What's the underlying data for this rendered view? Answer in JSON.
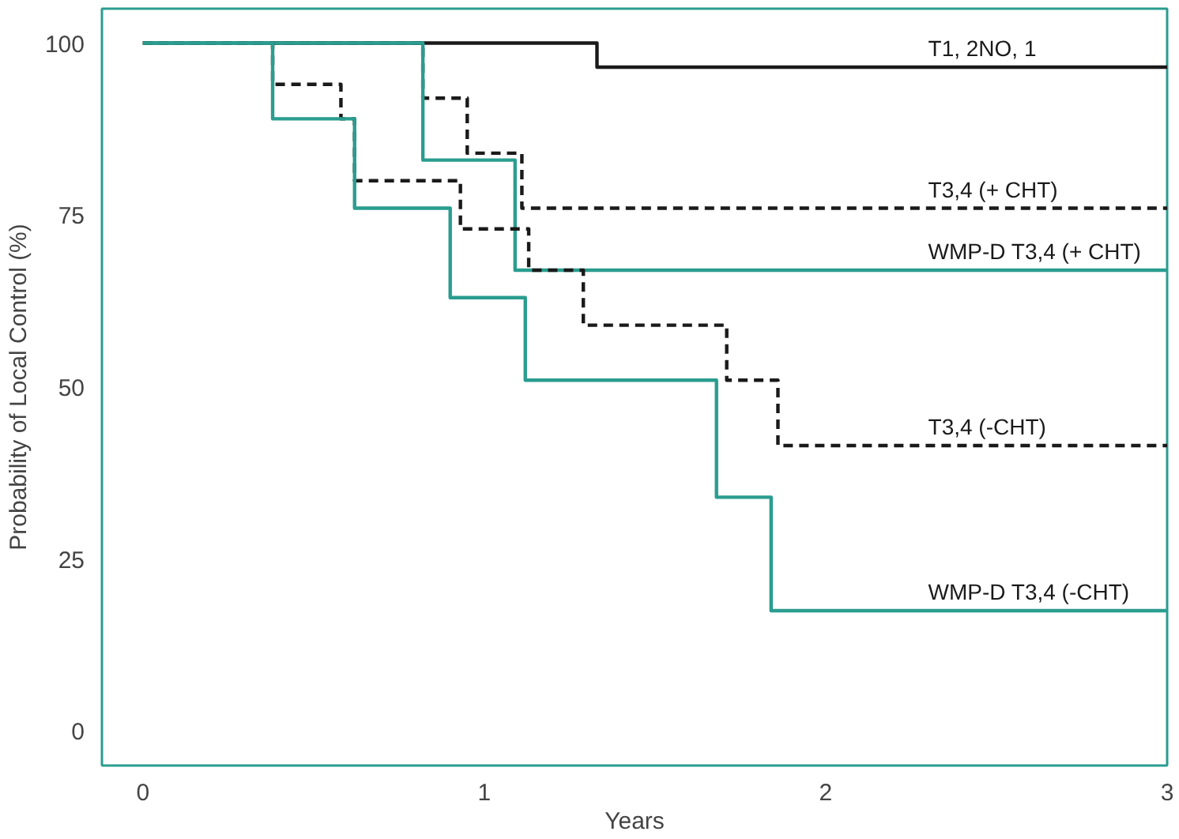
{
  "chart_data": {
    "type": "step",
    "xlabel": "Years",
    "ylabel": "Probability of Local Control (%)",
    "xlim": [
      -0.12,
      3
    ],
    "ylim": [
      -5,
      105
    ],
    "xticks": [
      0,
      1,
      2,
      3
    ],
    "yticks": [
      0,
      25,
      50,
      75,
      100
    ],
    "grid": false,
    "legend": false,
    "series": [
      {
        "name": "T1, 2NO, 1",
        "color": "#1a1a1a",
        "line_style": "solid",
        "x": [
          0,
          1.33,
          3
        ],
        "values": [
          100,
          96.5,
          96.5
        ]
      },
      {
        "name": "T3,4 (+ CHT)",
        "color": "#1a1a1a",
        "line_style": "dashed",
        "x": [
          0,
          0.82,
          0.95,
          1.11,
          3
        ],
        "values": [
          100,
          92,
          84,
          76,
          76
        ]
      },
      {
        "name": "WMP-D T3,4 (+ CHT)",
        "color": "#2a9d8f",
        "line_style": "solid",
        "x": [
          0,
          0.82,
          1.09,
          3
        ],
        "values": [
          100,
          83,
          67,
          67
        ]
      },
      {
        "name": "T3,4 (-CHT)",
        "color": "#1a1a1a",
        "line_style": "dashed",
        "x": [
          0,
          0.38,
          0.58,
          0.62,
          0.93,
          1.13,
          1.29,
          1.71,
          1.86,
          3
        ],
        "values": [
          100,
          94,
          89,
          80,
          73,
          67,
          59,
          51,
          41.5,
          41.5
        ]
      },
      {
        "name": "WMP-D T3,4 (-CHT)",
        "color": "#2a9d8f",
        "line_style": "solid",
        "x": [
          0,
          0.38,
          0.62,
          0.9,
          1.12,
          1.68,
          1.84,
          3
        ],
        "values": [
          100,
          89,
          76,
          63,
          51,
          34,
          17.5,
          17.5
        ]
      }
    ]
  }
}
